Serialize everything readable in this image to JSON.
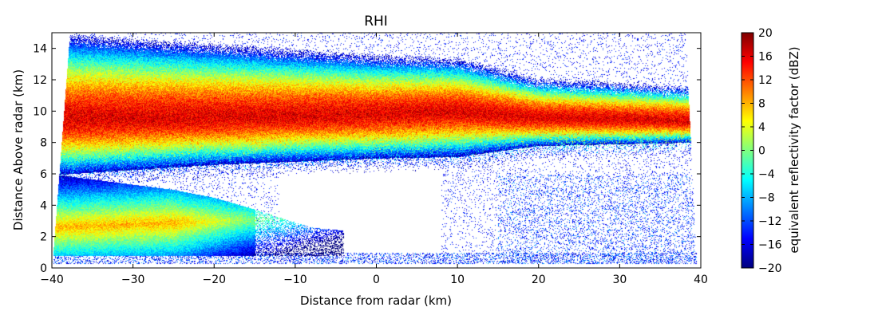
{
  "chart_data": {
    "type": "heatmap",
    "title": "RHI",
    "xlabel": "Distance from radar (km)",
    "ylabel": "Distance Above radar  (km)",
    "xlim": [
      -40,
      40
    ],
    "ylim": [
      0,
      15
    ],
    "x_ticks": [
      -40,
      -30,
      -20,
      -10,
      0,
      10,
      20,
      30,
      40
    ],
    "y_ticks": [
      0,
      2,
      4,
      6,
      8,
      10,
      12,
      14
    ],
    "grid": false,
    "colorbar": {
      "label": "equivalent reflectivity factor (dBZ)",
      "range": [
        -20,
        20
      ],
      "ticks": [
        -20,
        -16,
        -12,
        -8,
        -4,
        0,
        4,
        8,
        12,
        16,
        20
      ],
      "colormap": [
        "#00007f",
        "#0000ff",
        "#007fff",
        "#00ffff",
        "#7fff7f",
        "#ffff00",
        "#ff7f00",
        "#ff0000",
        "#7f0000"
      ]
    },
    "layers": [
      {
        "x": [
          -38,
          -20,
          0,
          10,
          20,
          38
        ],
        "cloud_top_km": [
          14.8,
          14.2,
          13.5,
          13.3,
          12.0,
          11.5
        ],
        "core_km": [
          9.5,
          9.6,
          9.8,
          10.0,
          9.6,
          9.4
        ],
        "cloud_base_km": [
          6.0,
          6.6,
          7.0,
          7.1,
          7.8,
          8.0
        ],
        "core_dbz": 16
      },
      {
        "x": [
          -40,
          -25,
          -15,
          -8
        ],
        "cloud_top_km": [
          6.0,
          5.0,
          4.0,
          3.2
        ],
        "cloud_base_km": [
          0.9,
          0.8,
          1.0,
          1.5
        ],
        "core_dbz": 8
      }
    ]
  }
}
